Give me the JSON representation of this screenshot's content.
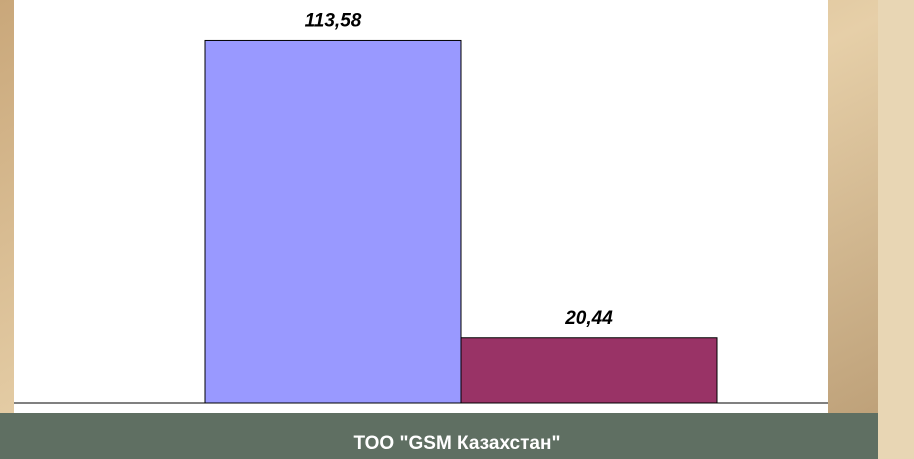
{
  "chart_data": {
    "type": "bar",
    "categories": [
      "ТОО \"GSM Казахстан\""
    ],
    "series": [
      {
        "color": "#9999ff",
        "values": [
          113.58
        ],
        "value_labels": [
          "113,58"
        ]
      },
      {
        "color": "#993366",
        "values": [
          20.44
        ],
        "value_labels": [
          "20,44"
        ]
      }
    ],
    "ylim": [
      0,
      125
    ]
  }
}
